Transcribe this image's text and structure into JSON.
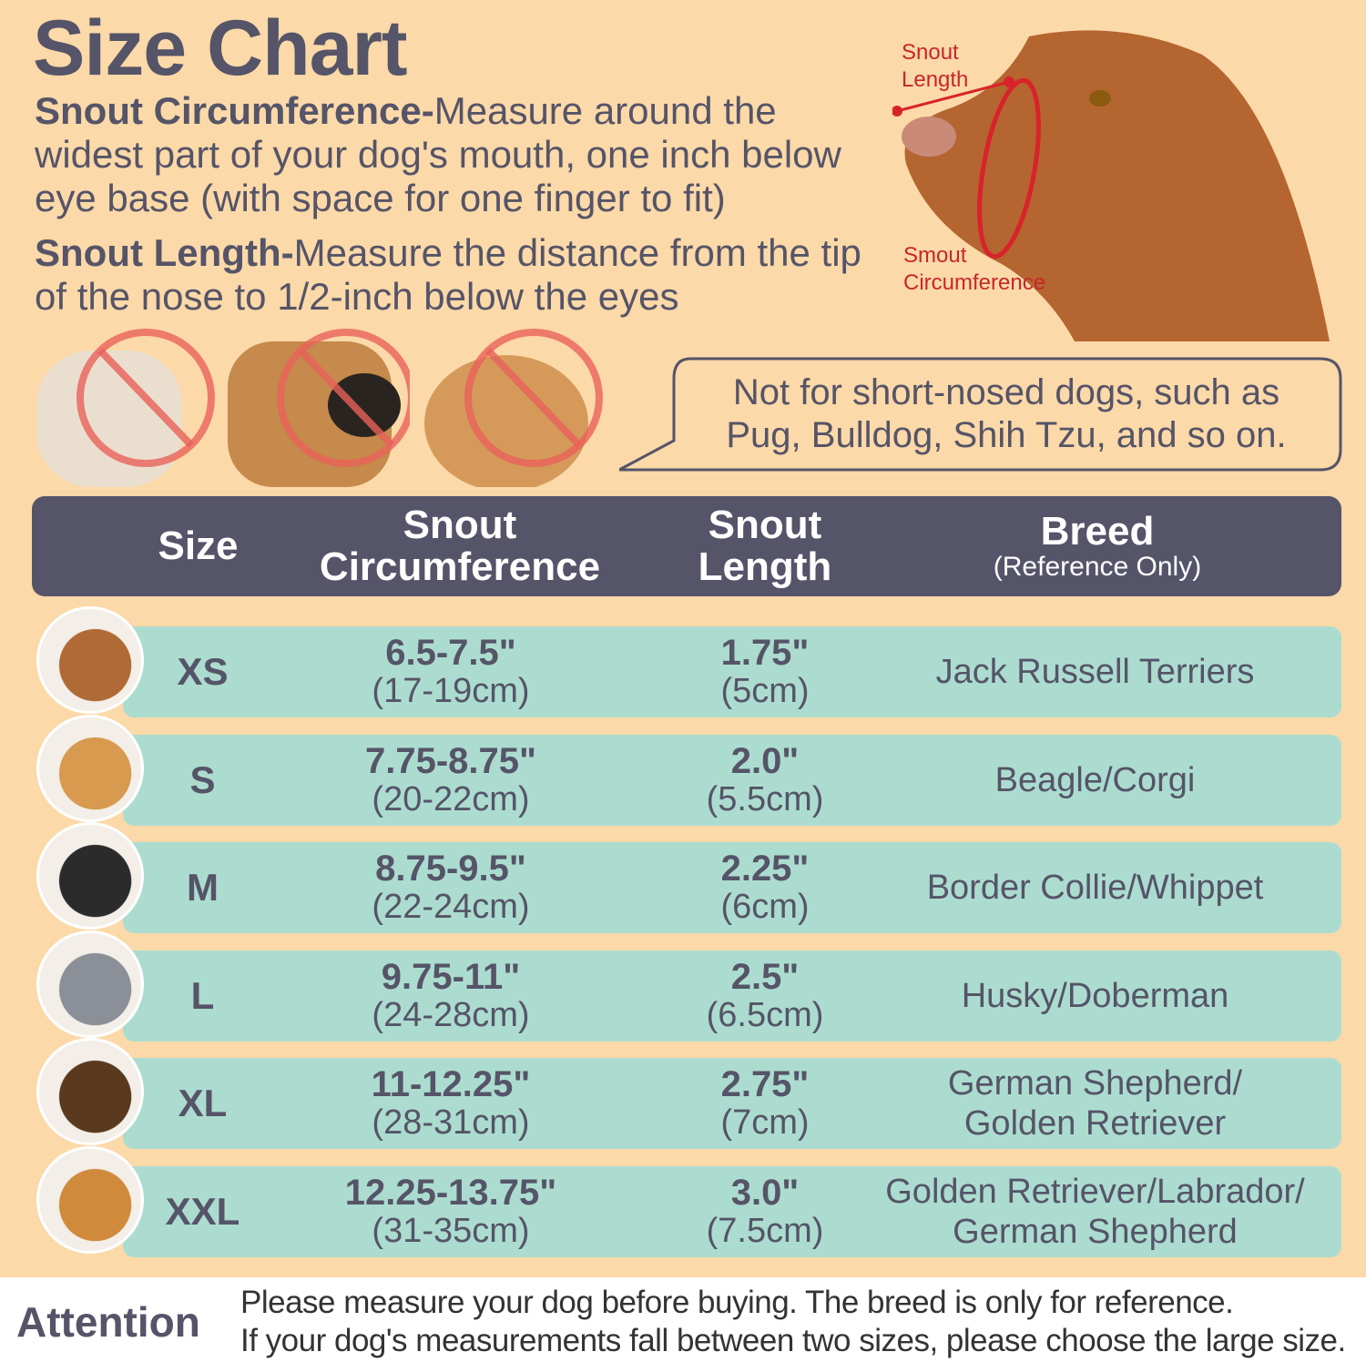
{
  "title": "Size Chart",
  "instructions": {
    "circumference": {
      "label": "Snout Circumference-",
      "text": "Measure around the widest part of your dog's mouth, one inch below eye base (with space for one finger to fit)"
    },
    "length": {
      "label": "Snout Length-",
      "text": "Measure the distance from the tip of the nose to 1/2-inch below the eyes"
    }
  },
  "diagram": {
    "length_label_1": "Snout",
    "length_label_2": "Length",
    "circ_label_1": "Smout",
    "circ_label_2": "Circumference",
    "accent": "#d8232a"
  },
  "warning": {
    "line1": "Not for short-nosed dogs, such as",
    "line2": "Pug, Bulldog, Shih Tzu, and so on."
  },
  "table": {
    "headers": {
      "size": "Size",
      "circ_1": "Snout",
      "circ_2": "Circumference",
      "len_1": "Snout",
      "len_2": "Length",
      "breed": "Breed",
      "breed_note": "(Reference Only)"
    },
    "rows": [
      {
        "size": "XS",
        "circ_in": "6.5-7.5\"",
        "circ_cm": "(17-19cm)",
        "len_in": "1.75\"",
        "len_cm": "(5cm)",
        "breed_1": "Jack Russell Terriers",
        "breed_2": ""
      },
      {
        "size": "S",
        "circ_in": "7.75-8.75\"",
        "circ_cm": "(20-22cm)",
        "len_in": "2.0\"",
        "len_cm": "(5.5cm)",
        "breed_1": "Beagle/Corgi",
        "breed_2": ""
      },
      {
        "size": "M",
        "circ_in": "8.75-9.5\"",
        "circ_cm": "(22-24cm)",
        "len_in": "2.25\"",
        "len_cm": "(6cm)",
        "breed_1": "Border Collie/Whippet",
        "breed_2": ""
      },
      {
        "size": "L",
        "circ_in": "9.75-11\"",
        "circ_cm": "(24-28cm)",
        "len_in": "2.5\"",
        "len_cm": "(6.5cm)",
        "breed_1": "Husky/Doberman",
        "breed_2": ""
      },
      {
        "size": "XL",
        "circ_in": "11-12.25\"",
        "circ_cm": "(28-31cm)",
        "len_in": "2.75\"",
        "len_cm": "(7cm)",
        "breed_1": "German Shepherd/",
        "breed_2": "Golden Retriever"
      },
      {
        "size": "XXL",
        "circ_in": "12.25-13.75\"",
        "circ_cm": "(31-35cm)",
        "len_in": "3.0\"",
        "len_cm": "(7.5cm)",
        "breed_1": "Golden Retriever/Labrador/",
        "breed_2": "German Shepherd"
      }
    ]
  },
  "attention": {
    "label": "Attention",
    "line1": "Please measure your dog before buying. The breed is only for reference.",
    "line2": "If your dog's measurements fall between two sizes, please choose the large size."
  },
  "colors": {
    "background": "#fcd9a8",
    "header": "#555469",
    "row": "#acdccf",
    "text": "#555468"
  }
}
